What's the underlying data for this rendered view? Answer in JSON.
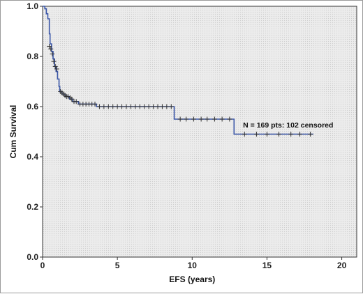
{
  "chart_data": {
    "type": "line",
    "xlabel": "EFS (years)",
    "ylabel": "Cum Survival",
    "xlim": [
      0,
      21
    ],
    "ylim": [
      0,
      1.0
    ],
    "xticks": [
      0,
      5,
      10,
      15,
      20
    ],
    "yticks": [
      0.0,
      0.2,
      0.4,
      0.6,
      0.8,
      1.0
    ],
    "xtick_labels": [
      "0",
      "5",
      "10",
      "15",
      "20"
    ],
    "ytick_labels": [
      "0.0",
      "0.2",
      "0.4",
      "0.6",
      "0.8",
      "1.0"
    ],
    "grid": false,
    "annotation": "N = 169 pts: 102 censored",
    "series": [
      {
        "line_color": "#3a56a8",
        "censor_color": "#333333",
        "step_points": [
          [
            0,
            1.0
          ],
          [
            0.15,
            0.99
          ],
          [
            0.25,
            0.97
          ],
          [
            0.35,
            0.95
          ],
          [
            0.45,
            0.89
          ],
          [
            0.5,
            0.85
          ],
          [
            0.6,
            0.82
          ],
          [
            0.7,
            0.79
          ],
          [
            0.8,
            0.76
          ],
          [
            0.9,
            0.74
          ],
          [
            1.0,
            0.71
          ],
          [
            1.1,
            0.68
          ],
          [
            1.15,
            0.66
          ],
          [
            1.3,
            0.65
          ],
          [
            1.5,
            0.64
          ],
          [
            1.8,
            0.63
          ],
          [
            2.0,
            0.62
          ],
          [
            2.4,
            0.61
          ],
          [
            3.6,
            0.6
          ],
          [
            8.8,
            0.55
          ],
          [
            12.8,
            0.49
          ],
          [
            18.1,
            0.49
          ]
        ],
        "censored": [
          [
            0.45,
            0.84
          ],
          [
            0.55,
            0.83
          ],
          [
            0.65,
            0.81
          ],
          [
            0.75,
            0.78
          ],
          [
            0.85,
            0.76
          ],
          [
            0.95,
            0.75
          ],
          [
            1.2,
            0.66
          ],
          [
            1.3,
            0.655
          ],
          [
            1.4,
            0.65
          ],
          [
            1.5,
            0.645
          ],
          [
            1.6,
            0.64
          ],
          [
            1.7,
            0.64
          ],
          [
            1.85,
            0.635
          ],
          [
            1.95,
            0.63
          ],
          [
            2.1,
            0.62
          ],
          [
            2.25,
            0.62
          ],
          [
            2.5,
            0.61
          ],
          [
            2.7,
            0.61
          ],
          [
            2.9,
            0.61
          ],
          [
            3.1,
            0.61
          ],
          [
            3.3,
            0.61
          ],
          [
            3.5,
            0.61
          ],
          [
            3.8,
            0.6
          ],
          [
            4.1,
            0.6
          ],
          [
            4.4,
            0.6
          ],
          [
            4.7,
            0.6
          ],
          [
            5.0,
            0.6
          ],
          [
            5.3,
            0.6
          ],
          [
            5.6,
            0.6
          ],
          [
            5.9,
            0.6
          ],
          [
            6.2,
            0.6
          ],
          [
            6.5,
            0.6
          ],
          [
            6.8,
            0.6
          ],
          [
            7.1,
            0.6
          ],
          [
            7.4,
            0.6
          ],
          [
            7.7,
            0.6
          ],
          [
            8.0,
            0.6
          ],
          [
            8.3,
            0.6
          ],
          [
            8.6,
            0.6
          ],
          [
            9.2,
            0.55
          ],
          [
            9.6,
            0.55
          ],
          [
            10.1,
            0.55
          ],
          [
            10.6,
            0.55
          ],
          [
            11.0,
            0.55
          ],
          [
            11.5,
            0.55
          ],
          [
            12.0,
            0.55
          ],
          [
            12.5,
            0.55
          ],
          [
            13.5,
            0.49
          ],
          [
            14.3,
            0.49
          ],
          [
            15.0,
            0.49
          ],
          [
            15.8,
            0.49
          ],
          [
            16.6,
            0.49
          ],
          [
            17.2,
            0.49
          ],
          [
            17.9,
            0.49
          ]
        ]
      }
    ]
  }
}
